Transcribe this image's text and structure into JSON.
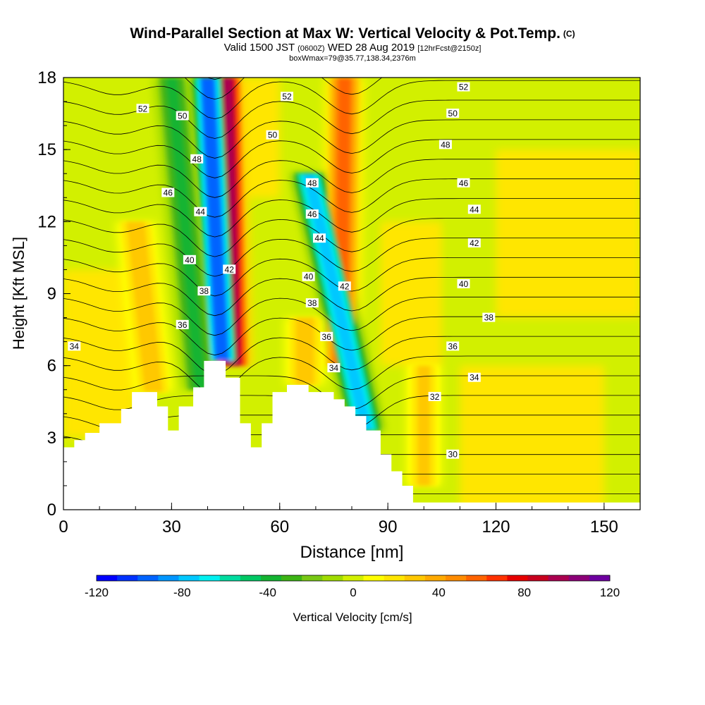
{
  "title": {
    "main": "Wind-Parallel Section at Max W: Vertical Velocity & Pot.Temp.",
    "copyright": "(C)",
    "valid_prefix": "Valid 1500 JST",
    "valid_utc": "(0600Z)",
    "valid_date": "WED 28 Aug 2019",
    "forecast": "[12hrFcst@2150z]",
    "box_info": "boxWmax=79@35.77,138.34,2376m"
  },
  "chart_data": {
    "type": "heatmap",
    "xlabel": "Distance [nm]",
    "ylabel": "Height [Kft MSL]",
    "xlim": [
      0,
      160
    ],
    "ylim": [
      0,
      18
    ],
    "x_ticks": [
      0,
      30,
      60,
      90,
      120,
      150
    ],
    "y_ticks": [
      0,
      3,
      6,
      9,
      12,
      15,
      18
    ],
    "terrain_top_kft": [
      [
        0,
        2.6
      ],
      [
        3,
        2.6
      ],
      [
        3,
        2.9
      ],
      [
        6,
        2.9
      ],
      [
        6,
        3.2
      ],
      [
        10,
        3.2
      ],
      [
        10,
        3.6
      ],
      [
        16,
        3.6
      ],
      [
        16,
        4.2
      ],
      [
        19,
        4.2
      ],
      [
        19,
        4.9
      ],
      [
        26,
        4.9
      ],
      [
        26,
        4.3
      ],
      [
        29,
        4.3
      ],
      [
        29,
        3.3
      ],
      [
        32,
        3.3
      ],
      [
        32,
        4.3
      ],
      [
        36,
        4.3
      ],
      [
        36,
        5.1
      ],
      [
        39,
        5.1
      ],
      [
        39,
        6.2
      ],
      [
        45,
        6.2
      ],
      [
        45,
        5.5
      ],
      [
        49,
        5.5
      ],
      [
        49,
        3.6
      ],
      [
        52,
        3.6
      ],
      [
        52,
        2.6
      ],
      [
        55,
        2.6
      ],
      [
        55,
        3.6
      ],
      [
        58,
        3.6
      ],
      [
        58,
        4.9
      ],
      [
        62,
        4.9
      ],
      [
        62,
        5.2
      ],
      [
        68,
        5.2
      ],
      [
        68,
        4.9
      ],
      [
        75,
        4.9
      ],
      [
        75,
        4.6
      ],
      [
        78,
        4.6
      ],
      [
        78,
        4.3
      ],
      [
        81,
        4.3
      ],
      [
        81,
        3.9
      ],
      [
        84,
        3.9
      ],
      [
        84,
        3.3
      ],
      [
        88,
        3.3
      ],
      [
        88,
        2.3
      ],
      [
        91,
        2.3
      ],
      [
        91,
        1.6
      ],
      [
        94,
        1.6
      ],
      [
        94,
        1.0
      ],
      [
        97,
        1.0
      ],
      [
        97,
        0.3
      ],
      [
        160,
        0.3
      ]
    ],
    "vertical_velocity_features": [
      {
        "kind": "updraft",
        "x_bottom": 47,
        "x_top": 45,
        "y_bottom": 6.0,
        "y_top": 18,
        "max_cm_s": 100
      },
      {
        "kind": "downdraft",
        "x_bottom": 44,
        "x_top": 40,
        "y_bottom": 6.2,
        "y_top": 18,
        "min_cm_s": -100
      },
      {
        "kind": "downdraft",
        "x_bottom": 38,
        "x_top": 30,
        "y_bottom": 5.0,
        "y_top": 18,
        "min_cm_s": -40
      },
      {
        "kind": "updraft",
        "x_bottom": 77,
        "x_top": 78,
        "y_bottom": 6.0,
        "y_top": 18,
        "max_cm_s": 55
      },
      {
        "kind": "downdraft",
        "x_bottom": 84,
        "x_top": 68,
        "y_bottom": 3.3,
        "y_top": 14,
        "min_cm_s": -80
      },
      {
        "kind": "updraft",
        "x_bottom": 67,
        "x_top": 67,
        "y_bottom": 5.2,
        "y_top": 8,
        "max_cm_s": 30
      },
      {
        "kind": "updraft",
        "x_bottom": 100,
        "x_top": 100,
        "y_bottom": 1.0,
        "y_top": 6,
        "max_cm_s": 25
      },
      {
        "kind": "updraft",
        "x_bottom": 25,
        "x_top": 20,
        "y_bottom": 4.9,
        "y_top": 12,
        "max_cm_s": 30
      }
    ],
    "theta_contours": [
      {
        "value": 30,
        "label_x": 108,
        "label_y": 2.3
      },
      {
        "value": 32,
        "label_x": 103,
        "label_y": 4.7
      },
      {
        "value": 34,
        "label_x": 3,
        "label_y": 6.8
      },
      {
        "value": 34,
        "label_x": 75,
        "label_y": 5.9
      },
      {
        "value": 34,
        "label_x": 114,
        "label_y": 5.5
      },
      {
        "value": 36,
        "label_x": 33,
        "label_y": 7.7
      },
      {
        "value": 36,
        "label_x": 73,
        "label_y": 7.2
      },
      {
        "value": 36,
        "label_x": 108,
        "label_y": 6.8
      },
      {
        "value": 38,
        "label_x": 39,
        "label_y": 9.1
      },
      {
        "value": 38,
        "label_x": 69,
        "label_y": 8.6
      },
      {
        "value": 38,
        "label_x": 118,
        "label_y": 8.0
      },
      {
        "value": 40,
        "label_x": 35,
        "label_y": 10.4
      },
      {
        "value": 40,
        "label_x": 68,
        "label_y": 9.7
      },
      {
        "value": 40,
        "label_x": 111,
        "label_y": 9.4
      },
      {
        "value": 42,
        "label_x": 46,
        "label_y": 10.0
      },
      {
        "value": 42,
        "label_x": 78,
        "label_y": 9.3
      },
      {
        "value": 42,
        "label_x": 114,
        "label_y": 11.1
      },
      {
        "value": 44,
        "label_x": 38,
        "label_y": 12.4
      },
      {
        "value": 44,
        "label_x": 71,
        "label_y": 11.3
      },
      {
        "value": 44,
        "label_x": 114,
        "label_y": 12.5
      },
      {
        "value": 46,
        "label_x": 29,
        "label_y": 13.2
      },
      {
        "value": 46,
        "label_x": 69,
        "label_y": 12.3
      },
      {
        "value": 46,
        "label_x": 111,
        "label_y": 13.6
      },
      {
        "value": 48,
        "label_x": 37,
        "label_y": 14.6
      },
      {
        "value": 48,
        "label_x": 69,
        "label_y": 13.6
      },
      {
        "value": 48,
        "label_x": 106,
        "label_y": 15.2
      },
      {
        "value": 50,
        "label_x": 33,
        "label_y": 16.4
      },
      {
        "value": 50,
        "label_x": 58,
        "label_y": 15.6
      },
      {
        "value": 50,
        "label_x": 108,
        "label_y": 16.5
      },
      {
        "value": 52,
        "label_x": 22,
        "label_y": 16.7
      },
      {
        "value": 52,
        "label_x": 62,
        "label_y": 17.2
      },
      {
        "value": 52,
        "label_x": 111,
        "label_y": 17.6
      }
    ]
  },
  "colorbar": {
    "label": "Vertical Velocity [cm/s]",
    "tick_values": [
      -120,
      -80,
      -40,
      0,
      40,
      80,
      120
    ],
    "tick_labels": [
      "-120",
      "-80",
      "-40",
      "0",
      "40",
      "80",
      "120"
    ],
    "colors": [
      "#0000ff",
      "#0032ff",
      "#0064ff",
      "#0096ff",
      "#00c8ff",
      "#00f0f0",
      "#00dca0",
      "#00c864",
      "#14b432",
      "#3cb414",
      "#78c814",
      "#a0dc00",
      "#d2f000",
      "#ffff00",
      "#ffe600",
      "#ffc800",
      "#ffaa00",
      "#ff8c00",
      "#ff6400",
      "#ff3200",
      "#e60000",
      "#c8001e",
      "#aa0050",
      "#8c0078",
      "#6e00a0"
    ]
  }
}
